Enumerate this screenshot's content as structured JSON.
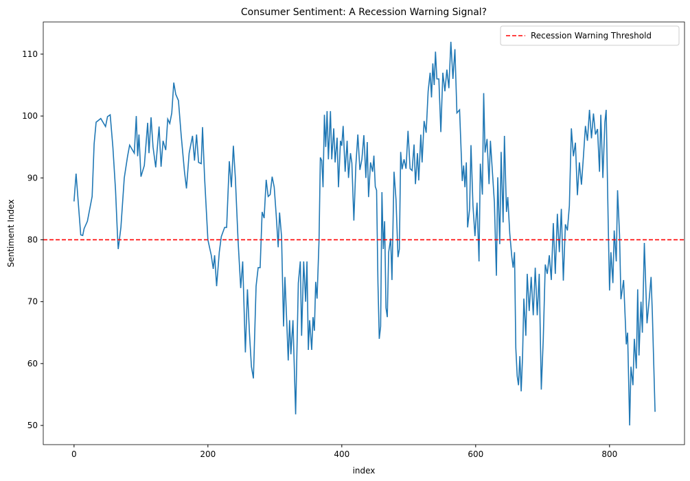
{
  "chart_data": {
    "type": "line",
    "title": "Consumer Sentiment: A Recession Warning Signal?",
    "x_label": "index",
    "y_label": "Sentiment Index",
    "x": [
      0,
      3,
      7,
      10,
      13,
      15,
      20,
      27,
      30,
      33,
      40,
      47,
      50,
      54,
      58,
      62,
      65,
      66,
      70,
      75,
      80,
      83,
      90,
      93,
      95,
      97,
      100,
      105,
      110,
      112,
      115,
      118,
      122,
      127,
      130,
      133,
      137,
      140,
      143,
      146,
      149,
      152,
      156,
      160,
      165,
      168,
      172,
      177,
      180,
      183,
      186,
      190,
      192,
      195,
      200,
      205,
      208,
      210,
      213,
      217,
      220,
      225,
      228,
      232,
      235,
      238,
      241,
      245,
      249,
      252,
      256,
      259,
      262,
      265,
      268,
      272,
      275,
      278,
      281,
      284,
      287,
      290,
      293,
      296,
      299,
      302,
      305,
      307,
      310,
      313,
      315,
      318,
      320,
      322,
      324,
      327,
      331,
      333,
      335,
      338,
      340,
      343,
      346,
      348,
      350,
      352,
      355,
      357,
      359,
      361,
      363,
      366,
      368,
      370,
      372,
      374,
      376,
      378,
      380,
      383,
      385,
      388,
      390,
      393,
      395,
      398,
      400,
      402,
      405,
      408,
      410,
      413,
      415,
      418,
      421,
      424,
      427,
      430,
      433,
      436,
      438,
      440,
      443,
      446,
      448,
      450,
      452,
      454,
      456,
      458,
      460,
      462,
      464,
      466,
      468,
      470,
      473,
      475,
      478,
      481,
      484,
      486,
      488,
      490,
      493,
      496,
      499,
      502,
      505,
      508,
      510,
      513,
      515,
      518,
      520,
      523,
      526,
      529,
      532,
      534,
      536,
      538,
      540,
      542,
      545,
      548,
      551,
      554,
      557,
      560,
      563,
      566,
      569,
      572,
      576,
      580,
      582,
      584,
      586,
      588,
      591,
      593,
      596,
      599,
      602,
      605,
      607,
      610,
      612,
      614,
      617,
      620,
      622,
      625,
      628,
      631,
      633,
      636,
      638,
      641,
      643,
      646,
      648,
      651,
      654,
      656,
      658,
      660,
      662,
      664,
      666,
      668,
      670,
      672,
      675,
      677,
      680,
      683,
      686,
      689,
      692,
      695,
      698,
      701,
      704,
      707,
      710,
      713,
      716,
      719,
      722,
      725,
      728,
      731,
      734,
      737,
      740,
      743,
      746,
      749,
      752,
      755,
      758,
      761,
      764,
      767,
      770,
      773,
      776,
      779,
      782,
      785,
      787,
      790,
      793,
      795,
      798,
      800,
      802,
      805,
      807,
      810,
      812,
      815,
      817,
      821,
      825,
      827,
      830,
      832,
      835,
      837,
      840,
      842,
      844,
      847,
      849,
      852,
      856,
      859,
      862,
      864,
      868
    ],
    "series": [
      {
        "color": "#1f77b4",
        "values": [
          86.2,
          90.7,
          85,
          80.8,
          80.7,
          81.8,
          83,
          87,
          95.5,
          99,
          99.6,
          98.3,
          99.9,
          100.2,
          95,
          88,
          80.5,
          78.5,
          82,
          90,
          93.5,
          95.3,
          94,
          100,
          93.5,
          97,
          90.2,
          92,
          98.9,
          94,
          99.8,
          95,
          91.7,
          98.3,
          91.8,
          96,
          94.5,
          99.5,
          98.8,
          100.5,
          105.4,
          103.5,
          102.5,
          97,
          91,
          88.3,
          94,
          96.8,
          92.8,
          97,
          92.5,
          92.3,
          98.2,
          90,
          80,
          77.5,
          75.3,
          77.5,
          72.5,
          78,
          80.5,
          82,
          82,
          92.7,
          88.5,
          95.2,
          90,
          80,
          72.2,
          76.5,
          61.8,
          72,
          65,
          59.5,
          57.6,
          72.5,
          75.5,
          75.5,
          84.5,
          83.5,
          89.7,
          87,
          87.3,
          90.2,
          88.5,
          84,
          78.8,
          84.4,
          80.5,
          66,
          74,
          66,
          60.5,
          67,
          61.5,
          67,
          51.8,
          62,
          73,
          76.5,
          64.5,
          76.5,
          70,
          76.5,
          62.2,
          67,
          62.2,
          67.5,
          65.3,
          73.2,
          70.5,
          80,
          93.3,
          92.8,
          88.5,
          100.2,
          95,
          100.8,
          93,
          100.8,
          93,
          98,
          92.5,
          96.5,
          88.5,
          96,
          95.2,
          98.4,
          91,
          96,
          90,
          94,
          92.4,
          83.1,
          92,
          97,
          91.3,
          93,
          96.9,
          90,
          95.8,
          86.9,
          92.5,
          91,
          93.6,
          88.6,
          88,
          73,
          64,
          66,
          87.7,
          78.5,
          83,
          69,
          67.5,
          78,
          80.2,
          73.5,
          91,
          86.5,
          77.2,
          78.5,
          94.2,
          91.4,
          93,
          91.5,
          97.6,
          91.5,
          91.2,
          95.4,
          89,
          94,
          89.6,
          97,
          92.5,
          99.2,
          97.3,
          104,
          107,
          103,
          108.5,
          105,
          110.4,
          106,
          106,
          97.4,
          107,
          104,
          107.5,
          104.5,
          112,
          106,
          110.8,
          100.5,
          101,
          89.5,
          92,
          88.5,
          92.5,
          82,
          85,
          95.3,
          85.5,
          80.6,
          86,
          76.5,
          92.3,
          87.3,
          103.7,
          94.1,
          96.3,
          89,
          96,
          91,
          86,
          74.2,
          90.1,
          79.3,
          94.2,
          82.8,
          96.8,
          84.5,
          86.9,
          81,
          77.2,
          75.5,
          78,
          62.5,
          58,
          56.5,
          61.2,
          55.5,
          61,
          70.5,
          64.5,
          74.5,
          68.5,
          74,
          67.8,
          75.5,
          67.8,
          74.5,
          55.8,
          64,
          76,
          74.5,
          77.5,
          73.5,
          82.7,
          74.5,
          84.2,
          78,
          85,
          73.4,
          82.5,
          81.5,
          85.5,
          98,
          93.5,
          95.7,
          87.2,
          92.5,
          88.9,
          93.5,
          98.4,
          96,
          101,
          96.4,
          100.4,
          97,
          97.9,
          91,
          100.2,
          90,
          99,
          101,
          82.5,
          71.8,
          78,
          73,
          81.5,
          76.5,
          88,
          80.8,
          70.4,
          73.5,
          63.1,
          65,
          50,
          59.5,
          56.5,
          64,
          59.2,
          72,
          61.3,
          70,
          65,
          79.5,
          66.5,
          70,
          74,
          68,
          52.2
        ]
      }
    ],
    "threshold": {
      "name": "Recession Warning Threshold",
      "value": 80,
      "color": "#ff0000"
    },
    "xlim": [
      -46,
      912
    ],
    "ylim": [
      46.9,
      115.2
    ],
    "xticks": [
      0,
      200,
      400,
      600,
      800
    ],
    "yticks": [
      50,
      60,
      70,
      80,
      90,
      100,
      110
    ],
    "legend": "upper right"
  }
}
